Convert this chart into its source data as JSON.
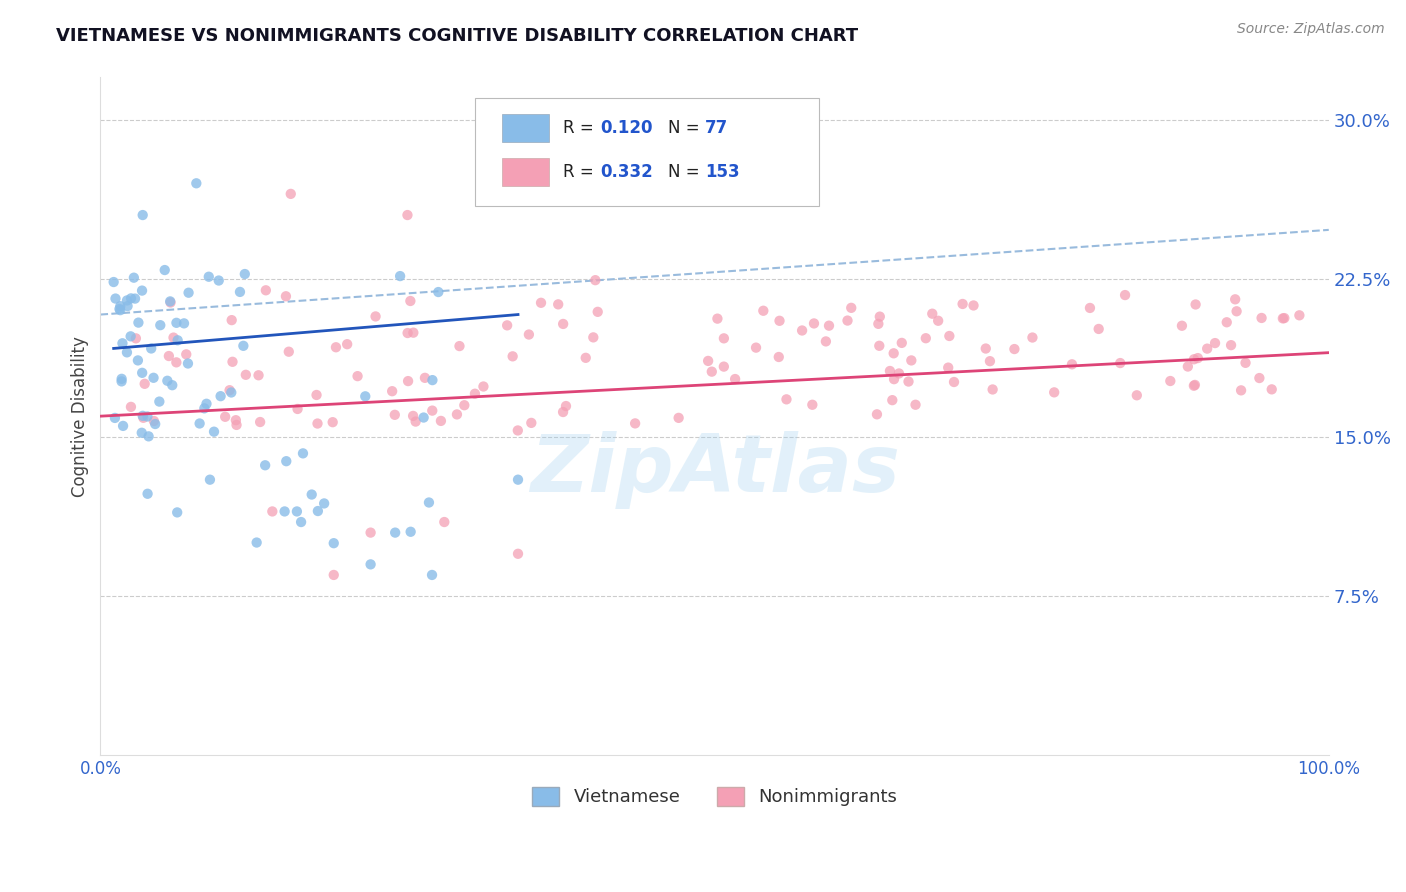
{
  "title": "VIETNAMESE VS NONIMMIGRANTS COGNITIVE DISABILITY CORRELATION CHART",
  "source_text": "Source: ZipAtlas.com",
  "ylabel": "Cognitive Disability",
  "watermark": "ZipAtlas",
  "xlim": [
    0,
    1
  ],
  "ylim": [
    0.0,
    0.32
  ],
  "yticks": [
    0.075,
    0.15,
    0.225,
    0.3
  ],
  "ytick_labels": [
    "7.5%",
    "15.0%",
    "22.5%",
    "30.0%"
  ],
  "viet_color": "#89bce8",
  "viet_line_color": "#2255bb",
  "nonimm_color": "#f4a0b5",
  "nonimm_line_color": "#dd4477",
  "dashed_color": "#99bbdd",
  "viet_R": 0.12,
  "viet_N": 77,
  "nonimm_R": 0.332,
  "nonimm_N": 153,
  "legend_R_color": "#2255cc",
  "background_color": "#ffffff",
  "grid_color": "#cccccc",
  "axis_label_color": "#3366cc",
  "title_color": "#111122"
}
